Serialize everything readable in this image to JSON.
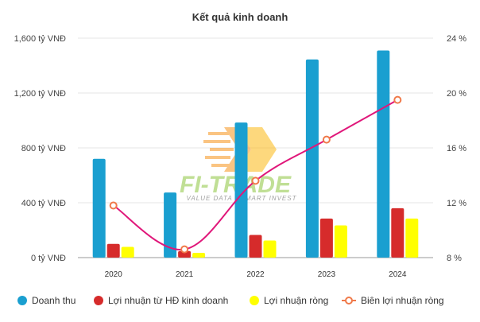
{
  "chart_data": {
    "type": "bar",
    "title": "Kết quả kinh doanh",
    "categories": [
      "2020",
      "2021",
      "2022",
      "2023",
      "2024"
    ],
    "series": [
      {
        "name": "Doanh thu",
        "type": "bar",
        "axis": "left",
        "color": "#1a9fd0",
        "values": [
          720,
          475,
          985,
          1445,
          1510
        ]
      },
      {
        "name": "Lợi nhuận từ HĐ kinh doanh",
        "type": "bar",
        "axis": "left",
        "color": "#d62b2b",
        "values": [
          100,
          48,
          165,
          285,
          360
        ]
      },
      {
        "name": "Lợi nhuận ròng",
        "type": "bar",
        "axis": "left",
        "color": "#ffff00",
        "values": [
          78,
          35,
          125,
          235,
          285
        ]
      },
      {
        "name": "Biên lợi nhuận ròng",
        "type": "line",
        "axis": "right",
        "color": "#e0177a",
        "marker_color": "#f07a4a",
        "values": [
          11.8,
          8.6,
          13.6,
          16.6,
          19.5
        ]
      }
    ],
    "y_left": {
      "min": 0,
      "max": 1600,
      "ticks": [
        "0 tỷ VNĐ",
        "400 tỷ VNĐ",
        "800 tỷ VNĐ",
        "1,200 tỷ VNĐ",
        "1,600 tỷ VNĐ"
      ]
    },
    "y_right": {
      "min": 8,
      "max": 24,
      "ticks": [
        "8 %",
        "12 %",
        "16 %",
        "20 %",
        "24 %"
      ]
    },
    "grid": "horizontal",
    "legend_position": "bottom"
  },
  "watermark": {
    "name": "FI-TRADE",
    "tagline": "VALUE DATA - SMART INVEST",
    "colors": {
      "green": "#8dc63f",
      "orange": "#f7941d",
      "yellow": "#fdb913"
    }
  }
}
